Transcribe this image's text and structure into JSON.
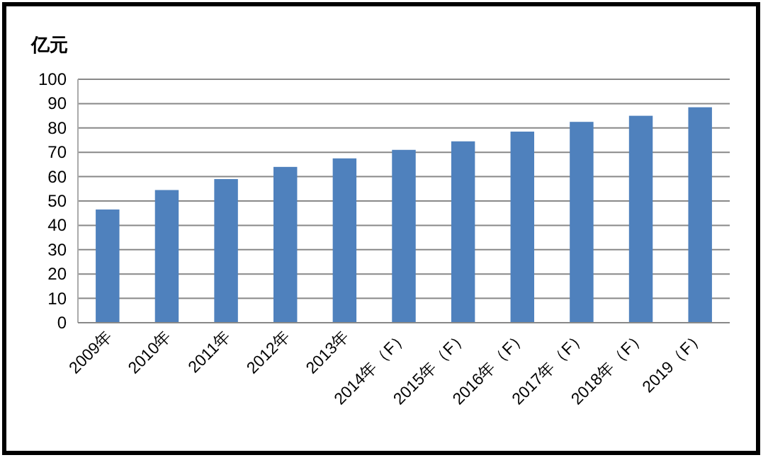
{
  "chart_data": {
    "type": "bar",
    "ylabel": "亿元",
    "categories": [
      "2009年",
      "2010年",
      "2011年",
      "2012年",
      "2013年",
      "2014年（F）",
      "2015年（F）",
      "2016年（F）",
      "2017年（F）",
      "2018年（F）",
      "2019（F）"
    ],
    "values": [
      46.5,
      54.5,
      59,
      64,
      67.5,
      71,
      74.5,
      78.5,
      82.5,
      85,
      88.5
    ],
    "color": "#4f81bd",
    "ylim": [
      0,
      100
    ],
    "yticks": [
      0,
      10,
      20,
      30,
      40,
      50,
      60,
      70,
      80,
      90,
      100
    ],
    "grid": "y"
  }
}
